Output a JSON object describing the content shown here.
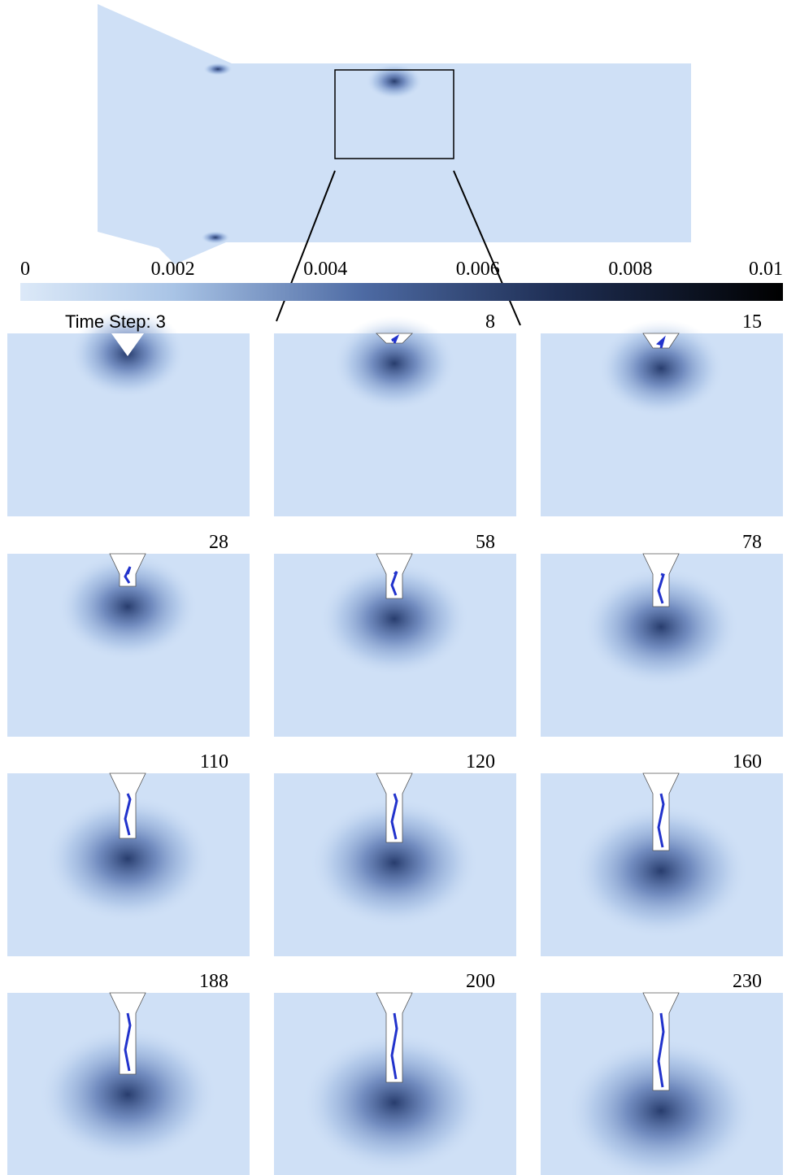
{
  "colorbar": {
    "ticks": [
      "0",
      "0.002",
      "0.004",
      "0.006",
      "0.008",
      "0.01"
    ]
  },
  "panels": [
    {
      "label": "Time Step: 3"
    },
    {
      "label": "8"
    },
    {
      "label": "15"
    },
    {
      "label": "28"
    },
    {
      "label": "58"
    },
    {
      "label": "78"
    },
    {
      "label": "110"
    },
    {
      "label": "120"
    },
    {
      "label": "160"
    },
    {
      "label": "188"
    },
    {
      "label": "200"
    },
    {
      "label": "230"
    }
  ]
}
